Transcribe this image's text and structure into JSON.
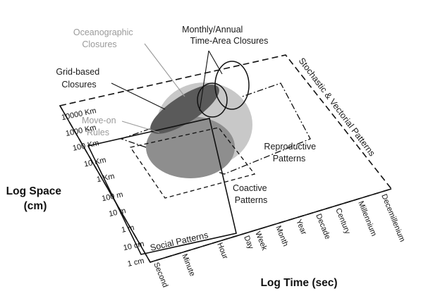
{
  "labels": {
    "oceanographic": [
      "Oceanographic",
      "Closures"
    ],
    "monthly_annual": [
      "Monthly/Annual",
      "Time-Area Closures"
    ],
    "grid_based": [
      "Grid-based",
      "Closures"
    ],
    "move_on": [
      "Move-on",
      "Rules"
    ],
    "reproductive": [
      "Reproductive",
      "Patterns"
    ],
    "coactive": [
      "Coactive",
      "Patterns"
    ],
    "social": "Social Patterns",
    "stochastic": "Stochastic & Vectorial Patterns"
  },
  "axes": {
    "space_title": [
      "Log Space",
      "(cm)"
    ],
    "time_title": "Log Time (sec)",
    "space_ticks": [
      "1 cm",
      "10 cm",
      "1 m",
      "10 m",
      "100 m",
      "1 Km",
      "10 Km",
      "100 Km",
      "1000 Km",
      "10000 Km"
    ],
    "time_ticks": [
      "Second",
      "Minute",
      "Hour",
      "Day",
      "Week",
      "Month",
      "Year",
      "Decade",
      "Century",
      "Millennium",
      "Decemillenium"
    ]
  },
  "colors": {
    "light_ellipse": "#c8c8c8",
    "mid_ellipse": "#8e8e8e",
    "dark_ellipse": "#5a5a5a",
    "grey_text": "#9a9a9a"
  }
}
